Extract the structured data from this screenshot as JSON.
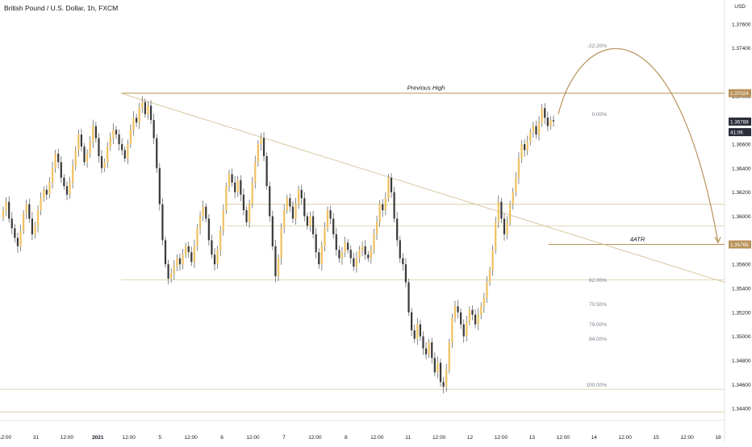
{
  "header": {
    "title": "British Pound / U.S. Dollar, 1h, FXCM",
    "currency": "USD"
  },
  "colors": {
    "bull": "#f0c060",
    "bear": "#3a3a3a",
    "wick": "#555555",
    "level": "#d8c8a0",
    "annotation": "#b8925a",
    "axis_text": "#131722",
    "price_tag_bg": "#2a2e39"
  },
  "chart_data": {
    "type": "candlestick",
    "ylim": [
      1.343,
      1.378
    ],
    "y_ticks": [
      "1.37600",
      "1.37400",
      "1.37000",
      "1.36600",
      "1.36400",
      "1.36200",
      "1.36000",
      "1.35600",
      "1.35400",
      "1.35200",
      "1.35000",
      "1.34800",
      "1.34600",
      "1.34400"
    ],
    "price_tags": [
      {
        "label": "1.37024",
        "value": 1.37024,
        "style": "level"
      },
      {
        "label": "1.36788",
        "value": 1.36788,
        "style": "current"
      },
      {
        "label": "41:06",
        "value": 1.367,
        "style": "timer"
      },
      {
        "label": "1.35765",
        "value": 1.35765,
        "style": "level"
      }
    ],
    "x_ticks": [
      "12:00",
      "31",
      "12:00",
      "2021",
      "12:00",
      "5",
      "12:00",
      "6",
      "12:00",
      "7",
      "12:00",
      "8",
      "12:00",
      "11",
      "12:00",
      "12",
      "12:00",
      "13",
      "12:00",
      "14",
      "12:00",
      "15",
      "12:00",
      "18"
    ],
    "levels": [
      {
        "label": "Previous High",
        "value": 1.37024
      },
      {
        "label": "4ATR",
        "value": 1.35765
      },
      {
        "label": "",
        "value": 1.361
      },
      {
        "label": "",
        "value": 1.3592
      },
      {
        "label": "",
        "value": 1.3547
      },
      {
        "label": "",
        "value": 1.3456
      },
      {
        "label": "",
        "value": 1.3437
      }
    ],
    "fib_labels": [
      {
        "label": "-22.20%",
        "value": 1.3742
      },
      {
        "label": "0.00%",
        "value": 1.3685
      },
      {
        "label": "62.00%",
        "value": 1.3547
      },
      {
        "label": "70.50%",
        "value": 1.3527
      },
      {
        "label": "79.00%",
        "value": 1.351
      },
      {
        "label": "84.00%",
        "value": 1.3498
      },
      {
        "label": "100.00%",
        "value": 1.346
      }
    ],
    "closes": [
      1.3605,
      1.3612,
      1.3598,
      1.359,
      1.3582,
      1.3575,
      1.3588,
      1.3602,
      1.361,
      1.3598,
      1.3585,
      1.3592,
      1.3605,
      1.3615,
      1.3622,
      1.3618,
      1.3628,
      1.364,
      1.3652,
      1.3645,
      1.3632,
      1.3625,
      1.3618,
      1.3628,
      1.3642,
      1.3655,
      1.3668,
      1.3658,
      1.3645,
      1.3652,
      1.3662,
      1.3675,
      1.3665,
      1.365,
      1.364,
      1.3645,
      1.3658,
      1.3665,
      1.3672,
      1.3668,
      1.366,
      1.3655,
      1.3648,
      1.366,
      1.3672,
      1.3682,
      1.3678,
      1.369,
      1.3695,
      1.3685,
      1.3692,
      1.368,
      1.3665,
      1.364,
      1.361,
      1.358,
      1.356,
      1.3548,
      1.3552,
      1.3558,
      1.3565,
      1.356,
      1.3568,
      1.3575,
      1.357,
      1.3562,
      1.3575,
      1.359,
      1.36,
      1.3608,
      1.3598,
      1.358,
      1.3568,
      1.356,
      1.3572,
      1.3588,
      1.3605,
      1.3625,
      1.3635,
      1.3628,
      1.362,
      1.363,
      1.3618,
      1.3605,
      1.3595,
      1.361,
      1.3628,
      1.3645,
      1.366,
      1.3665,
      1.365,
      1.3625,
      1.36,
      1.3575,
      1.355,
      1.3565,
      1.359,
      1.3605,
      1.3615,
      1.3608,
      1.3598,
      1.361,
      1.3622,
      1.3615,
      1.36,
      1.3592,
      1.36,
      1.3585,
      1.357,
      1.356,
      1.3575,
      1.359,
      1.3605,
      1.3598,
      1.3585,
      1.3572,
      1.3565,
      1.357,
      1.3578,
      1.3572,
      1.3565,
      1.3558,
      1.3565,
      1.3572,
      1.3575,
      1.3568,
      1.3565,
      1.3572,
      1.3585,
      1.3595,
      1.361,
      1.3605,
      1.3615,
      1.3632,
      1.362,
      1.3598,
      1.358,
      1.3565,
      1.356,
      1.3545,
      1.352,
      1.3505,
      1.3498,
      1.351,
      1.35,
      1.349,
      1.3485,
      1.3495,
      1.3482,
      1.347,
      1.3478,
      1.3462,
      1.3458,
      1.3472,
      1.3495,
      1.3515,
      1.3525,
      1.352,
      1.351,
      1.35,
      1.3512,
      1.3522,
      1.3518,
      1.351,
      1.3518,
      1.3525,
      1.3532,
      1.3545,
      1.3555,
      1.3572,
      1.3595,
      1.3612,
      1.3598,
      1.3585,
      1.3595,
      1.361,
      1.362,
      1.3632,
      1.3648,
      1.366,
      1.3655,
      1.3662,
      1.367,
      1.3675,
      1.3668,
      1.3678,
      1.369,
      1.3682,
      1.3675,
      1.368,
      1.3679
    ]
  }
}
